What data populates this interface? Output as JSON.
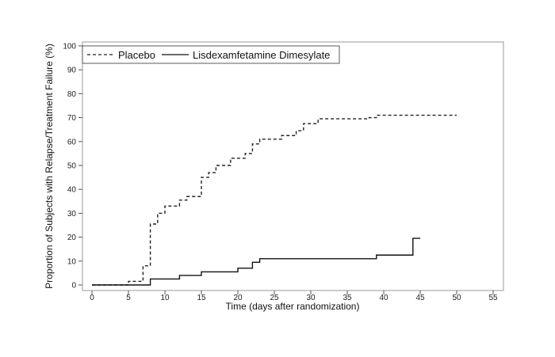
{
  "chart_data": {
    "type": "line",
    "title": "",
    "xlabel": "Time (days after randomization)",
    "ylabel": "Proportion of Subjects with Relapse/Treatment Failure (%)",
    "xlim": [
      0,
      55
    ],
    "ylim": [
      0,
      100
    ],
    "xticks": [
      0,
      5,
      10,
      15,
      20,
      25,
      30,
      35,
      40,
      45,
      50,
      55
    ],
    "yticks": [
      0,
      10,
      20,
      30,
      40,
      50,
      60,
      70,
      80,
      90,
      100
    ],
    "grid": false,
    "legend_position": "top-left",
    "step": true,
    "series": [
      {
        "name": "Placebo",
        "style": "dashed",
        "color": "#222222",
        "x": [
          0,
          5,
          7,
          8,
          9,
          10,
          12,
          13,
          15,
          16,
          17,
          19,
          21,
          22,
          23,
          25,
          26,
          28,
          29,
          31,
          38,
          39,
          50
        ],
        "y": [
          0,
          1.5,
          8,
          25.5,
          30,
          33,
          35.5,
          37,
          45,
          47,
          50,
          53,
          55,
          59,
          61,
          61,
          62.5,
          64.5,
          67.5,
          69.5,
          70,
          71,
          71
        ]
      },
      {
        "name": "Lisdexamfetamine Dimesylate",
        "style": "solid",
        "color": "#111111",
        "x": [
          0,
          8,
          12,
          15,
          20,
          22,
          23,
          39,
          44,
          45
        ],
        "y": [
          0,
          2.5,
          4,
          5.5,
          7,
          9.5,
          11,
          12.5,
          19.5,
          19.5
        ]
      }
    ]
  }
}
